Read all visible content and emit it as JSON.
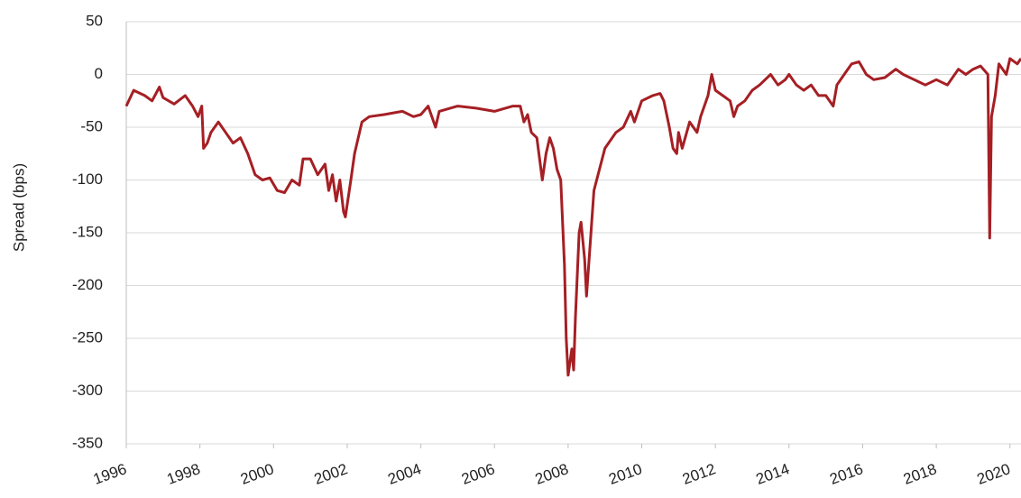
{
  "chart_data": {
    "type": "line",
    "y_label": "Spread (bps)",
    "x": [
      1996.0,
      1996.2,
      1996.5,
      1996.7,
      1996.9,
      1997.0,
      1997.3,
      1997.6,
      1997.8,
      1997.95,
      1998.05,
      1998.1,
      1998.2,
      1998.3,
      1998.5,
      1998.7,
      1998.9,
      1999.1,
      1999.3,
      1999.5,
      1999.7,
      1999.9,
      2000.1,
      2000.3,
      2000.5,
      2000.7,
      2000.8,
      2001.0,
      2001.2,
      2001.4,
      2001.5,
      2001.6,
      2001.7,
      2001.8,
      2001.9,
      2001.95,
      2002.1,
      2002.2,
      2002.4,
      2002.6,
      2003.0,
      2003.5,
      2003.8,
      2004.0,
      2004.2,
      2004.4,
      2004.5,
      2005.0,
      2005.5,
      2006.0,
      2006.5,
      2006.7,
      2006.8,
      2006.9,
      2007.0,
      2007.15,
      2007.3,
      2007.4,
      2007.5,
      2007.6,
      2007.7,
      2007.8,
      2007.9,
      2007.95,
      2008.0,
      2008.1,
      2008.15,
      2008.2,
      2008.3,
      2008.35,
      2008.45,
      2008.5,
      2008.6,
      2008.7,
      2008.85,
      2009.0,
      2009.3,
      2009.5,
      2009.7,
      2009.8,
      2010.0,
      2010.3,
      2010.5,
      2010.6,
      2010.75,
      2010.85,
      2010.95,
      2011.0,
      2011.1,
      2011.3,
      2011.5,
      2011.6,
      2011.8,
      2011.9,
      2012.0,
      2012.2,
      2012.4,
      2012.5,
      2012.6,
      2012.8,
      2013.0,
      2013.2,
      2013.5,
      2013.7,
      2013.9,
      2014.0,
      2014.2,
      2014.4,
      2014.6,
      2014.8,
      2015.0,
      2015.2,
      2015.3,
      2015.5,
      2015.7,
      2015.9,
      2016.1,
      2016.3,
      2016.6,
      2016.9,
      2017.1,
      2017.4,
      2017.7,
      2018.0,
      2018.3,
      2018.6,
      2018.8,
      2019.0,
      2019.2,
      2019.4,
      2019.45,
      2019.5,
      2019.6,
      2019.7,
      2019.9,
      2020.0,
      2020.2,
      2020.3
    ],
    "series": [
      {
        "name": "Spread",
        "color": "#a51f24",
        "values": [
          -30,
          -15,
          -20,
          -25,
          -12,
          -22,
          -28,
          -20,
          -30,
          -40,
          -30,
          -70,
          -65,
          -55,
          -45,
          -55,
          -65,
          -60,
          -75,
          -95,
          -100,
          -98,
          -110,
          -112,
          -100,
          -105,
          -80,
          -80,
          -95,
          -85,
          -110,
          -95,
          -120,
          -100,
          -130,
          -135,
          -100,
          -75,
          -45,
          -40,
          -38,
          -35,
          -40,
          -38,
          -30,
          -50,
          -35,
          -30,
          -32,
          -35,
          -30,
          -30,
          -45,
          -38,
          -55,
          -60,
          -100,
          -75,
          -60,
          -70,
          -90,
          -100,
          -180,
          -250,
          -285,
          -260,
          -280,
          -230,
          -150,
          -140,
          -175,
          -210,
          -160,
          -110,
          -90,
          -70,
          -55,
          -50,
          -35,
          -45,
          -25,
          -20,
          -18,
          -25,
          -50,
          -70,
          -75,
          -55,
          -70,
          -45,
          -55,
          -40,
          -20,
          0,
          -15,
          -20,
          -25,
          -40,
          -30,
          -25,
          -15,
          -10,
          0,
          -10,
          -5,
          0,
          -10,
          -15,
          -10,
          -20,
          -20,
          -30,
          -10,
          0,
          10,
          12,
          0,
          -5,
          -3,
          5,
          0,
          -5,
          -10,
          -5,
          -10,
          5,
          0,
          5,
          8,
          0,
          -155,
          -40,
          -20,
          10,
          0,
          15,
          10,
          15
        ]
      }
    ],
    "xlim": [
      1996,
      2020.3
    ],
    "xticks": [
      1996,
      1998,
      2000,
      2002,
      2004,
      2006,
      2008,
      2010,
      2012,
      2014,
      2016,
      2018,
      2020
    ],
    "ylim": [
      -350,
      50
    ],
    "yticks": [
      50,
      0,
      -50,
      -100,
      -150,
      -200,
      -250,
      -300,
      -350
    ],
    "grid": true
  }
}
